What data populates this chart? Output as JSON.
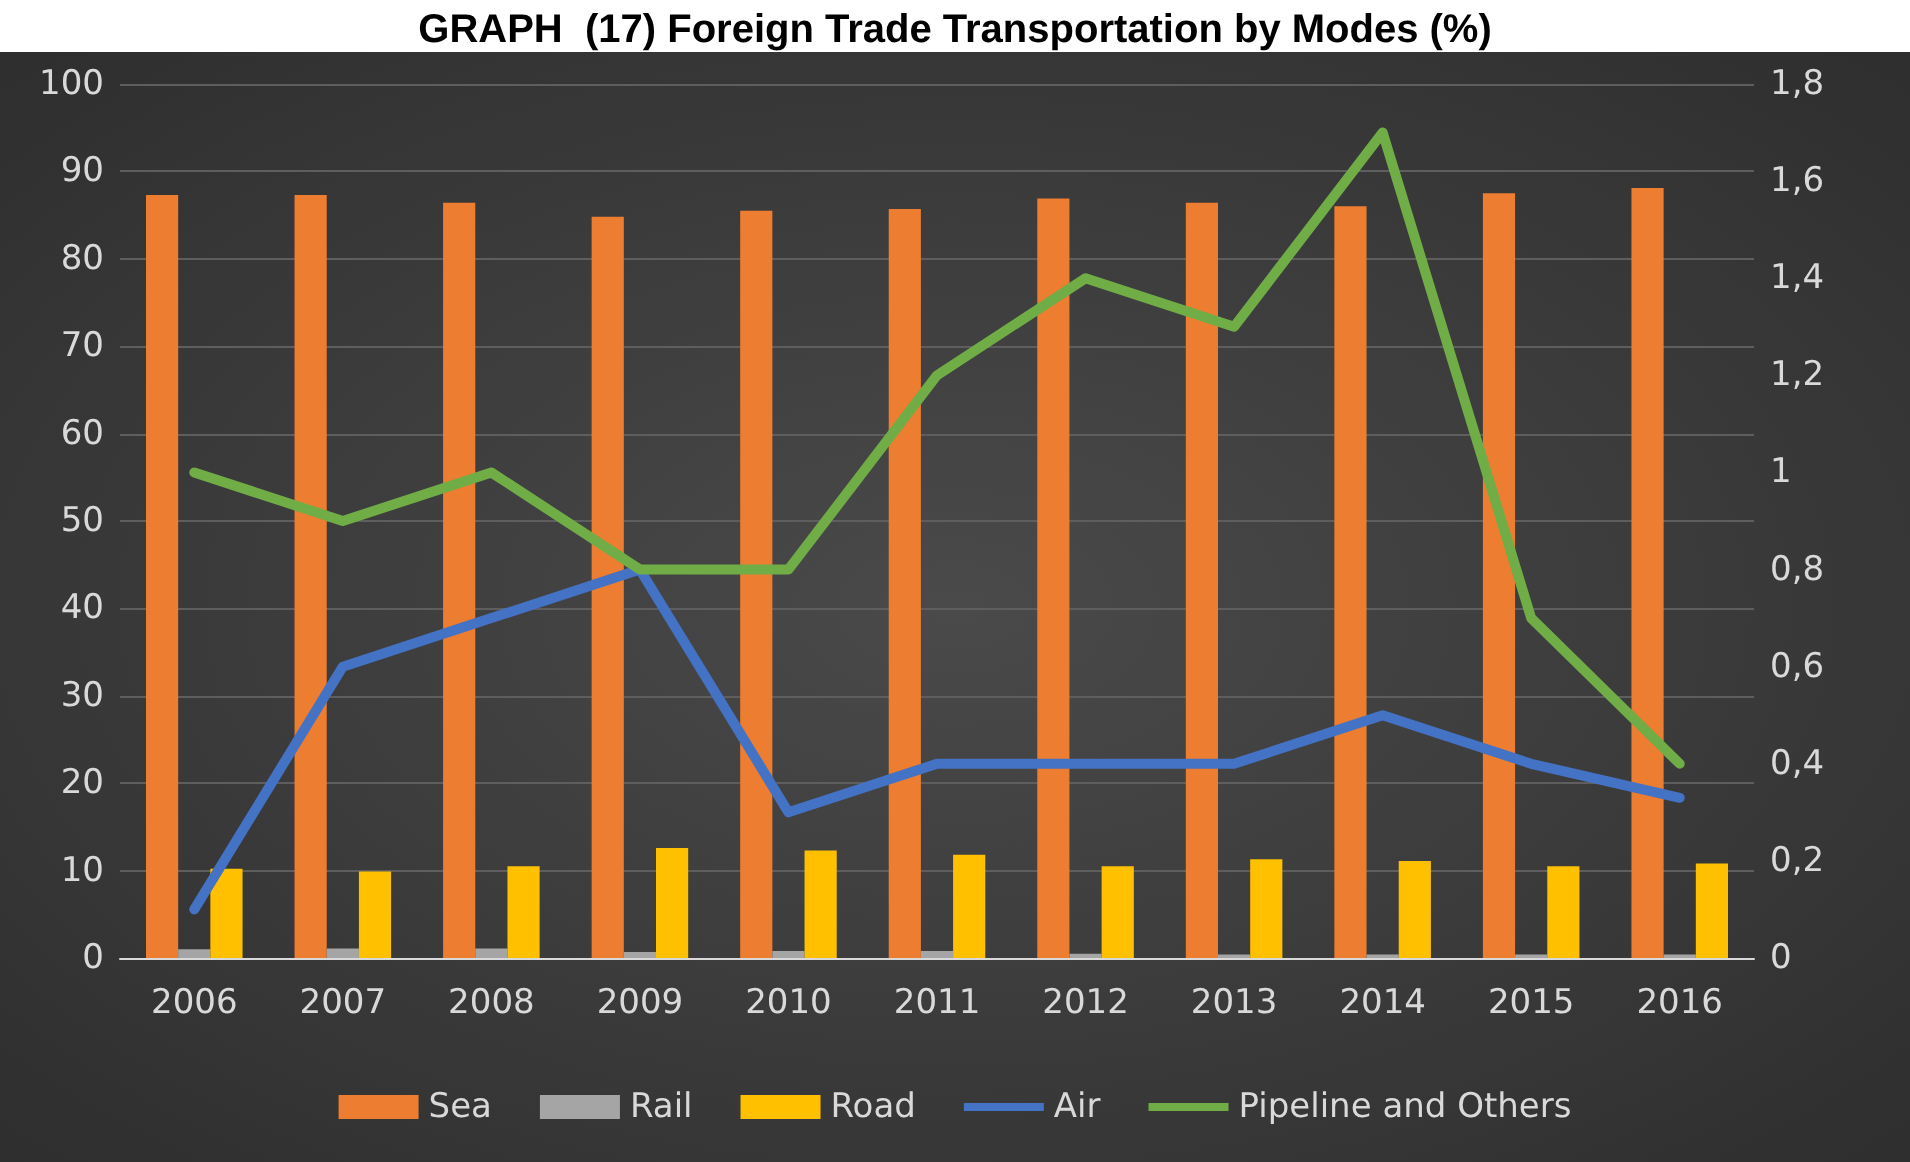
{
  "chart_data": {
    "type": "bar",
    "title": "GRAPH  (17) Foreign Trade Transportation by Modes (%)",
    "categories": [
      "2006",
      "2007",
      "2008",
      "2009",
      "2010",
      "2011",
      "2012",
      "2013",
      "2014",
      "2015",
      "2016"
    ],
    "series": [
      {
        "name": "Sea",
        "color": "#ed7d31",
        "values": [
          87.3,
          87.3,
          86.4,
          84.8,
          85.5,
          85.7,
          86.9,
          86.4,
          86.0,
          87.5,
          88.1
        ]
      },
      {
        "name": "Rail",
        "color": "#a5a5a5",
        "values": [
          1.0,
          1.1,
          1.1,
          0.7,
          0.8,
          0.8,
          0.5,
          0.4,
          0.4,
          0.4,
          0.4
        ]
      },
      {
        "name": "Road",
        "color": "#ffc000",
        "values": [
          10.2,
          9.9,
          10.5,
          12.6,
          12.3,
          11.8,
          10.5,
          11.3,
          11.1,
          10.5,
          10.8
        ]
      },
      {
        "name": "Air",
        "type": "line",
        "axis": "y2",
        "color": "#4472c4",
        "values": [
          0.1,
          0.6,
          0.7,
          0.8,
          0.3,
          0.4,
          0.4,
          0.4,
          0.5,
          0.4,
          0.33
        ]
      },
      {
        "name": "Pipeline and Others",
        "type": "line",
        "axis": "y2",
        "color": "#70ad47",
        "values": [
          1.0,
          0.9,
          1.0,
          0.8,
          0.8,
          1.2,
          1.4,
          1.3,
          1.7,
          0.7,
          0.4
        ]
      }
    ],
    "ylim": [
      0,
      100
    ],
    "yticks": [
      0,
      10,
      20,
      30,
      40,
      50,
      60,
      70,
      80,
      90,
      100
    ],
    "y2lim": [
      0,
      1.8
    ],
    "y2ticks": [
      0,
      {
        "value": 0.2,
        "label": "0,2"
      },
      {
        "value": 0.4,
        "label": "0,4"
      },
      {
        "value": 0.6,
        "label": "0,6"
      },
      {
        "value": 0.8,
        "label": "0,8"
      },
      1,
      {
        "value": 1.2,
        "label": "1,2"
      },
      {
        "value": 1.4,
        "label": "1,4"
      },
      {
        "value": 1.6,
        "label": "1,6"
      },
      {
        "value": 1.8,
        "label": "1,8"
      }
    ],
    "grid": "y",
    "legend": "bottom",
    "marker": "none",
    "line_style": "solid"
  }
}
